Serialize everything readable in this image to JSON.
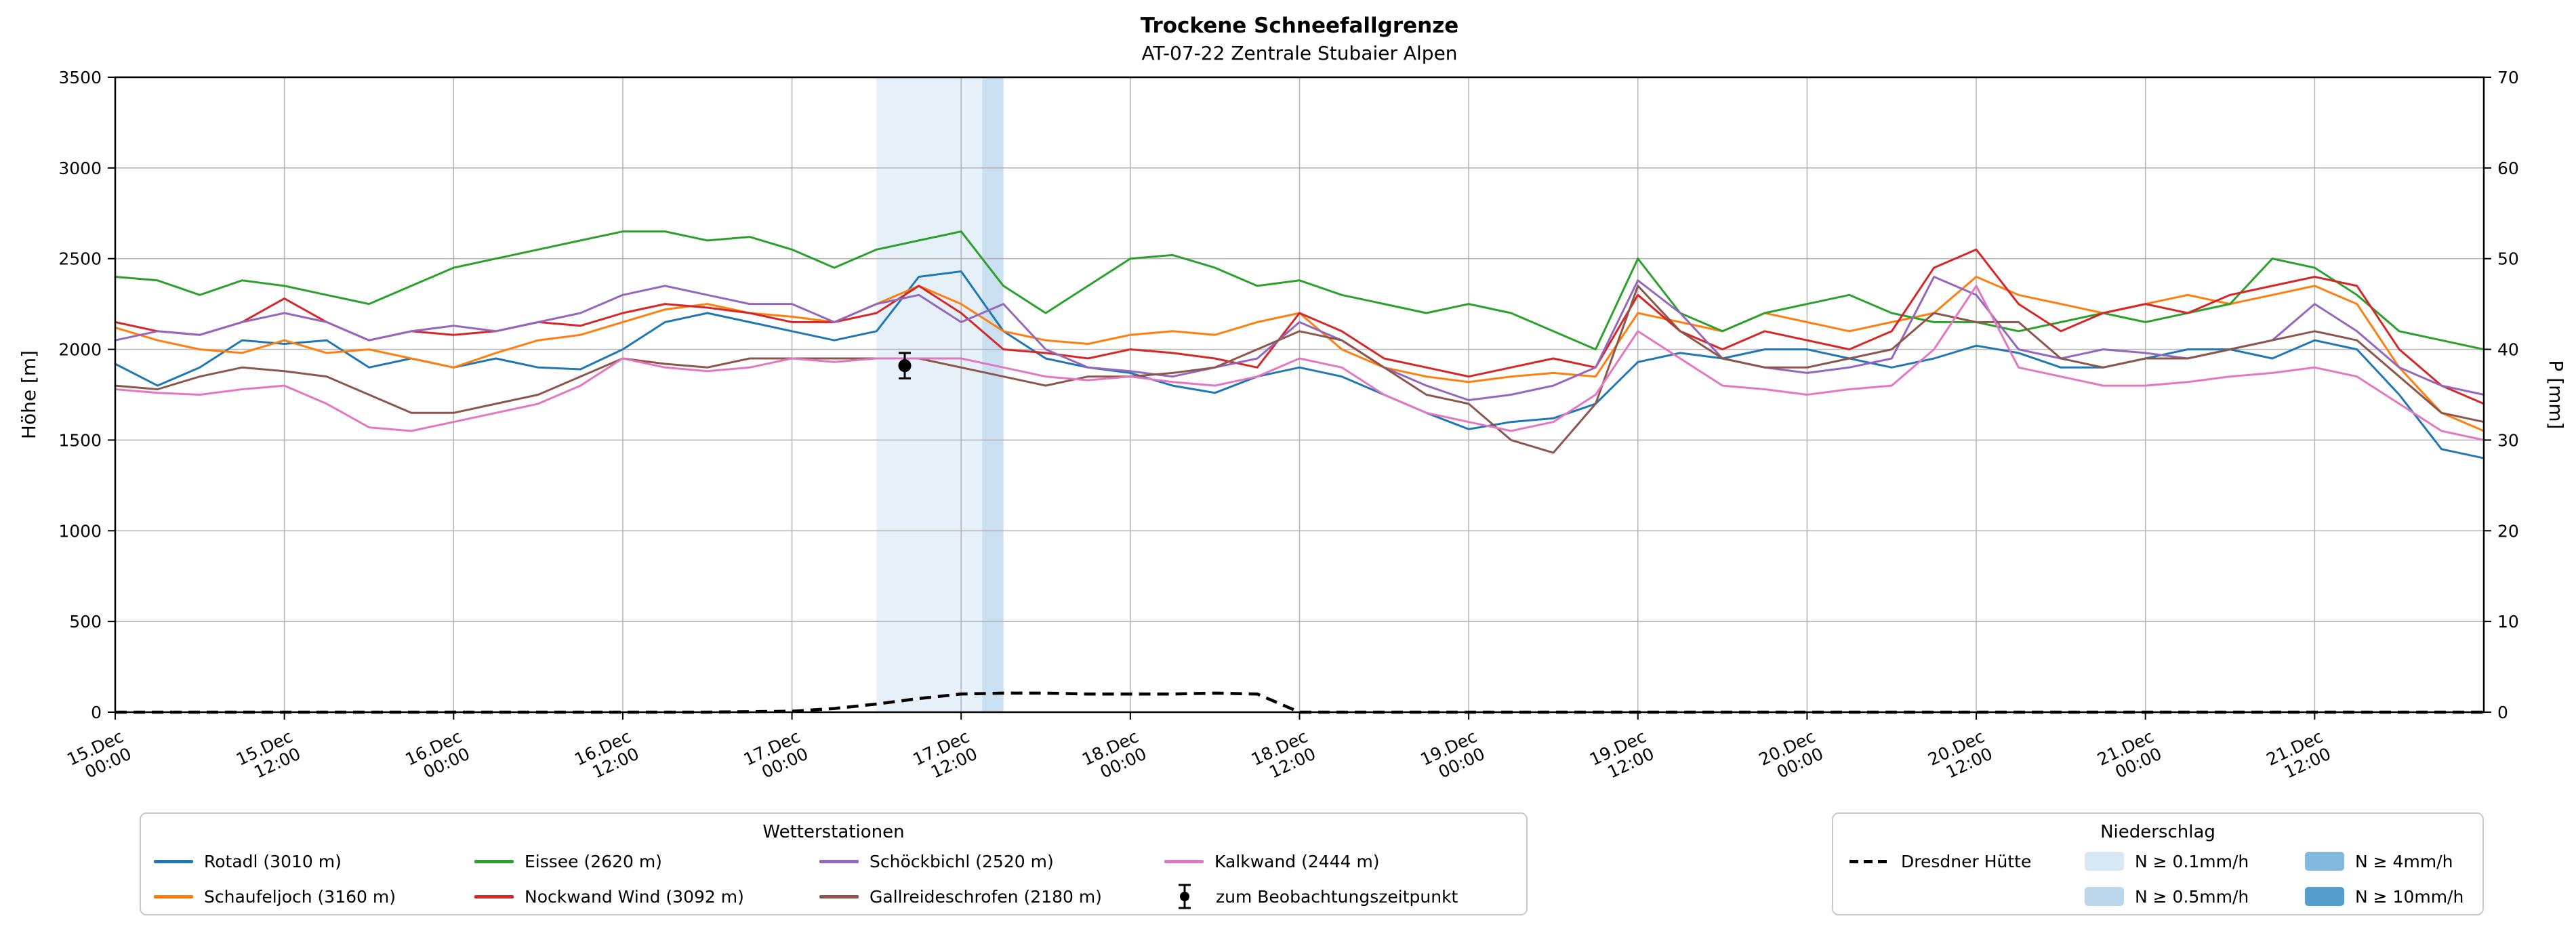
{
  "title": "Trockene Schneefallgrenze",
  "subtitle": "AT-07-22 Zentrale Stubaier Alpen",
  "axes": {
    "y_left_label": "Höhe [m]",
    "y_right_label": "P [mm]",
    "y_left_ticks": [
      0,
      500,
      1000,
      1500,
      2000,
      2500,
      3000,
      3500
    ],
    "y_right_ticks": [
      0,
      10,
      20,
      30,
      40,
      50,
      60,
      70
    ],
    "x_ticks": [
      {
        "hour": 0,
        "date": "15.Dec",
        "time": "00:00"
      },
      {
        "hour": 12,
        "date": "15.Dec",
        "time": "12:00"
      },
      {
        "hour": 24,
        "date": "16.Dec",
        "time": "00:00"
      },
      {
        "hour": 36,
        "date": "16.Dec",
        "time": "12:00"
      },
      {
        "hour": 48,
        "date": "17.Dec",
        "time": "00:00"
      },
      {
        "hour": 60,
        "date": "17.Dec",
        "time": "12:00"
      },
      {
        "hour": 72,
        "date": "18.Dec",
        "time": "00:00"
      },
      {
        "hour": 84,
        "date": "18.Dec",
        "time": "12:00"
      },
      {
        "hour": 96,
        "date": "19.Dec",
        "time": "00:00"
      },
      {
        "hour": 108,
        "date": "19.Dec",
        "time": "12:00"
      },
      {
        "hour": 120,
        "date": "20.Dec",
        "time": "00:00"
      },
      {
        "hour": 132,
        "date": "20.Dec",
        "time": "12:00"
      },
      {
        "hour": 144,
        "date": "21.Dec",
        "time": "00:00"
      },
      {
        "hour": 156,
        "date": "21.Dec",
        "time": "12:00"
      }
    ]
  },
  "chart_data": {
    "type": "line",
    "title": "Trockene Schneefallgrenze",
    "subtitle": "AT-07-22 Zentrale Stubaier Alpen",
    "xlabel": "",
    "ylabel_left": "Höhe [m]",
    "ylabel_right": "P [mm]",
    "x_unit": "hours since 15.Dec 00:00",
    "x_range": [
      0,
      168
    ],
    "ylim_left": [
      0,
      3500
    ],
    "ylim_right": [
      0,
      70
    ],
    "grid": true,
    "x_hours": [
      0,
      3,
      6,
      9,
      12,
      15,
      18,
      21,
      24,
      27,
      30,
      33,
      36,
      39,
      42,
      45,
      48,
      51,
      54,
      57,
      60,
      63,
      66,
      69,
      72,
      75,
      78,
      81,
      84,
      87,
      90,
      93,
      96,
      99,
      102,
      105,
      108,
      111,
      114,
      117,
      120,
      123,
      126,
      129,
      132,
      135,
      138,
      141,
      144,
      147,
      150,
      153,
      156,
      159,
      162,
      165,
      168
    ],
    "series": [
      {
        "name": "Rotadl (3010 m)",
        "color": "#1f77b4",
        "values": [
          1920,
          1800,
          1900,
          2050,
          2030,
          2050,
          1900,
          1950,
          1900,
          1950,
          1900,
          1890,
          2000,
          2150,
          2200,
          2150,
          2100,
          2050,
          2100,
          2400,
          2430,
          2100,
          1950,
          1900,
          1870,
          1800,
          1760,
          1850,
          1900,
          1850,
          1750,
          1650,
          1560,
          1600,
          1620,
          1700,
          1930,
          1980,
          1950,
          2000,
          2000,
          1950,
          1900,
          1950,
          2020,
          1980,
          1900,
          1900,
          1950,
          2000,
          2000,
          1950,
          2050,
          2000,
          1750,
          1450,
          1400
        ]
      },
      {
        "name": "Schaufeljoch (3160 m)",
        "color": "#ff7f0e",
        "values": [
          2120,
          2050,
          2000,
          1980,
          2050,
          1980,
          2000,
          1950,
          1900,
          1980,
          2050,
          2080,
          2150,
          2220,
          2250,
          2200,
          2180,
          2150,
          2250,
          2350,
          2250,
          2100,
          2050,
          2030,
          2080,
          2100,
          2080,
          2150,
          2200,
          2000,
          1900,
          1850,
          1820,
          1850,
          1870,
          1850,
          2200,
          2150,
          2100,
          2200,
          2150,
          2100,
          2150,
          2200,
          2400,
          2300,
          2250,
          2200,
          2250,
          2300,
          2250,
          2300,
          2350,
          2250,
          1900,
          1650,
          1550
        ]
      },
      {
        "name": "Eissee (2620 m)",
        "color": "#2ca02c",
        "values": [
          2400,
          2380,
          2300,
          2380,
          2350,
          2300,
          2250,
          2350,
          2450,
          2500,
          2550,
          2600,
          2650,
          2650,
          2600,
          2620,
          2550,
          2450,
          2550,
          2600,
          2650,
          2350,
          2200,
          2350,
          2500,
          2520,
          2450,
          2350,
          2380,
          2300,
          2250,
          2200,
          2250,
          2200,
          2100,
          2000,
          2500,
          2200,
          2100,
          2200,
          2250,
          2300,
          2200,
          2150,
          2150,
          2100,
          2150,
          2200,
          2150,
          2200,
          2250,
          2500,
          2450,
          2300,
          2100,
          2050,
          2000
        ]
      },
      {
        "name": "Nockwand Wind (3092 m)",
        "color": "#d62728",
        "values": [
          2150,
          2100,
          2080,
          2150,
          2280,
          2150,
          2050,
          2100,
          2080,
          2100,
          2150,
          2130,
          2200,
          2250,
          2230,
          2200,
          2150,
          2150,
          2200,
          2350,
          2200,
          2000,
          1980,
          1950,
          2000,
          1980,
          1950,
          1900,
          2200,
          2100,
          1950,
          1900,
          1850,
          1900,
          1950,
          1900,
          2300,
          2100,
          2000,
          2100,
          2050,
          2000,
          2100,
          2450,
          2550,
          2250,
          2100,
          2200,
          2250,
          2200,
          2300,
          2350,
          2400,
          2350,
          2000,
          1800,
          1700
        ]
      },
      {
        "name": "Schöckbichl (2520 m)",
        "color": "#9467bd",
        "values": [
          2050,
          2100,
          2080,
          2150,
          2200,
          2150,
          2050,
          2100,
          2130,
          2100,
          2150,
          2200,
          2300,
          2350,
          2300,
          2250,
          2250,
          2150,
          2250,
          2300,
          2150,
          2250,
          2000,
          1900,
          1880,
          1850,
          1900,
          1950,
          2150,
          2050,
          1900,
          1800,
          1720,
          1750,
          1800,
          1900,
          2380,
          2200,
          1950,
          1900,
          1870,
          1900,
          1950,
          2400,
          2300,
          2000,
          1950,
          2000,
          1980,
          1950,
          2000,
          2050,
          2250,
          2100,
          1900,
          1800,
          1750
        ]
      },
      {
        "name": "Gallreideschrofen (2180 m)",
        "color": "#8c564b",
        "values": [
          1800,
          1780,
          1850,
          1900,
          1880,
          1850,
          1750,
          1650,
          1650,
          1700,
          1750,
          1850,
          1950,
          1920,
          1900,
          1950,
          1950,
          1950,
          1950,
          1950,
          1900,
          1850,
          1800,
          1850,
          1850,
          1870,
          1900,
          2000,
          2100,
          2050,
          1900,
          1750,
          1700,
          1500,
          1430,
          1700,
          2350,
          2100,
          1950,
          1900,
          1900,
          1950,
          2000,
          2200,
          2150,
          2150,
          1950,
          1900,
          1950,
          1950,
          2000,
          2050,
          2100,
          2050,
          1850,
          1650,
          1600
        ]
      },
      {
        "name": "Kalkwand (2444 m)",
        "color": "#e377c2",
        "values": [
          1780,
          1760,
          1750,
          1780,
          1800,
          1700,
          1570,
          1550,
          1600,
          1650,
          1700,
          1800,
          1950,
          1900,
          1880,
          1900,
          1950,
          1930,
          1950,
          1950,
          1950,
          1900,
          1850,
          1830,
          1850,
          1820,
          1800,
          1850,
          1950,
          1900,
          1750,
          1650,
          1600,
          1550,
          1600,
          1750,
          2100,
          1950,
          1800,
          1780,
          1750,
          1780,
          1800,
          2000,
          2350,
          1900,
          1850,
          1800,
          1800,
          1820,
          1850,
          1870,
          1900,
          1850,
          1700,
          1550,
          1500
        ]
      }
    ],
    "precip_line": {
      "name": "Dresdner Hütte",
      "color": "#000000",
      "dashed": true,
      "axis": "right",
      "unit": "mm",
      "values": [
        0,
        0,
        0,
        0,
        0,
        0,
        0,
        0,
        0,
        0,
        0,
        0,
        0,
        0,
        0,
        0.05,
        0.1,
        0.4,
        0.9,
        1.5,
        2,
        2.1,
        2.1,
        2,
        2,
        2,
        2.1,
        2,
        0,
        0,
        0,
        0,
        0,
        0,
        0,
        0,
        0,
        0,
        0,
        0,
        0,
        0,
        0,
        0,
        0,
        0,
        0,
        0,
        0,
        0,
        0,
        0,
        0,
        0,
        0,
        0,
        0
      ]
    },
    "observation": {
      "label": "zum Beobachtungszeitpunkt",
      "hour": 56,
      "height_m": 1910,
      "error_m": 70
    },
    "precip_bands": [
      {
        "level": "N ≥ 0.1mm/h",
        "start_hour": 54,
        "end_hour": 63,
        "color": "#d9e8f5"
      },
      {
        "level": "N ≥ 0.5mm/h",
        "start_hour": 61.5,
        "end_hour": 63,
        "color": "#bcd7ec"
      }
    ]
  },
  "legends": {
    "stations": {
      "title": "Wetterstationen",
      "entries": [
        {
          "label": "Rotadl (3010 m)",
          "type": "line",
          "color": "#1f77b4"
        },
        {
          "label": "Schaufeljoch (3160 m)",
          "type": "line",
          "color": "#ff7f0e"
        },
        {
          "label": "Eissee (2620 m)",
          "type": "line",
          "color": "#2ca02c"
        },
        {
          "label": "Nockwand Wind (3092 m)",
          "type": "line",
          "color": "#d62728"
        },
        {
          "label": "Schöckbichl (2520 m)",
          "type": "line",
          "color": "#9467bd"
        },
        {
          "label": "Gallreideschrofen (2180 m)",
          "type": "line",
          "color": "#8c564b"
        },
        {
          "label": "Kalkwand (2444 m)",
          "type": "line",
          "color": "#e377c2"
        },
        {
          "label": "zum Beobachtungszeitpunkt",
          "type": "marker",
          "color": "#000000"
        }
      ]
    },
    "precip": {
      "title": "Niederschlag",
      "entries": [
        {
          "label": "Dresdner Hütte",
          "type": "dashed",
          "color": "#000000"
        },
        {
          "label": "N ≥ 0.1mm/h",
          "type": "patch",
          "color": "#d9e8f5"
        },
        {
          "label": "N ≥ 0.5mm/h",
          "type": "patch",
          "color": "#bcd7ec"
        },
        {
          "label": "N ≥ 4mm/h",
          "type": "patch",
          "color": "#85b8dd"
        },
        {
          "label": "N ≥ 10mm/h",
          "type": "patch",
          "color": "#539ecd"
        }
      ]
    }
  }
}
